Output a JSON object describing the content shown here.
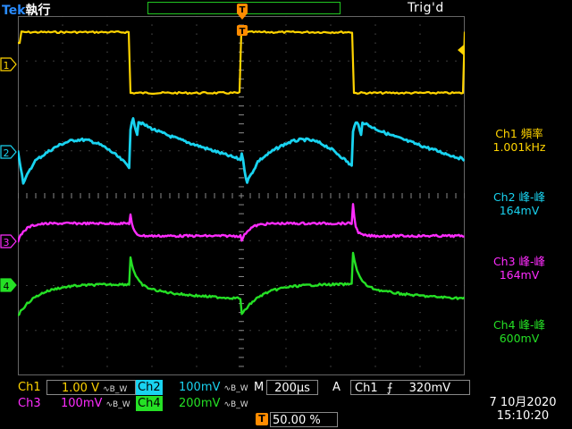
{
  "header": {
    "brand": "Tek",
    "run_state": "執行",
    "trigger_status": "Trig'd",
    "trigger_marker": "T"
  },
  "channels": [
    {
      "id": "ch1",
      "marker": "1",
      "color": "#ffd400"
    },
    {
      "id": "ch2",
      "marker": "2",
      "color": "#19d3f0"
    },
    {
      "id": "ch3",
      "marker": "3",
      "color": "#ff2cff"
    },
    {
      "id": "ch4",
      "marker": "4",
      "color": "#25e025"
    }
  ],
  "measurements": [
    {
      "channel": "Ch1",
      "name": "頻率",
      "value": "1.001kHz",
      "color": "#ffd400"
    },
    {
      "channel": "Ch2",
      "name": "峰-峰",
      "value": "164mV",
      "color": "#19d3f0"
    },
    {
      "channel": "Ch3",
      "name": "峰-峰",
      "value": "164mV",
      "color": "#ff2cff"
    },
    {
      "channel": "Ch4",
      "name": "峰-峰",
      "value": "600mV",
      "color": "#25e025"
    }
  ],
  "settings": {
    "ch1": {
      "label": "Ch1",
      "scale": "1.00 V",
      "bw": "∿B_W"
    },
    "ch2": {
      "label": "Ch2",
      "scale": "100mV",
      "bw": "∿B_W"
    },
    "ch3": {
      "label": "Ch3",
      "scale": "100mV",
      "bw": "∿B_W"
    },
    "ch4": {
      "label": "Ch4",
      "scale": "200mV",
      "bw": "∿B_W"
    },
    "timebase": {
      "label": "M",
      "value": "200µs"
    },
    "trigger": {
      "mode": "A",
      "source": "Ch1",
      "slope_icon": "rising-edge-icon",
      "slope_glyph": "⨍",
      "level": "320mV"
    },
    "trigger_position": {
      "marker": "T",
      "value": "50.00 %"
    }
  },
  "datetime": {
    "date": "7 10月2020",
    "time": "15:10:20"
  }
}
